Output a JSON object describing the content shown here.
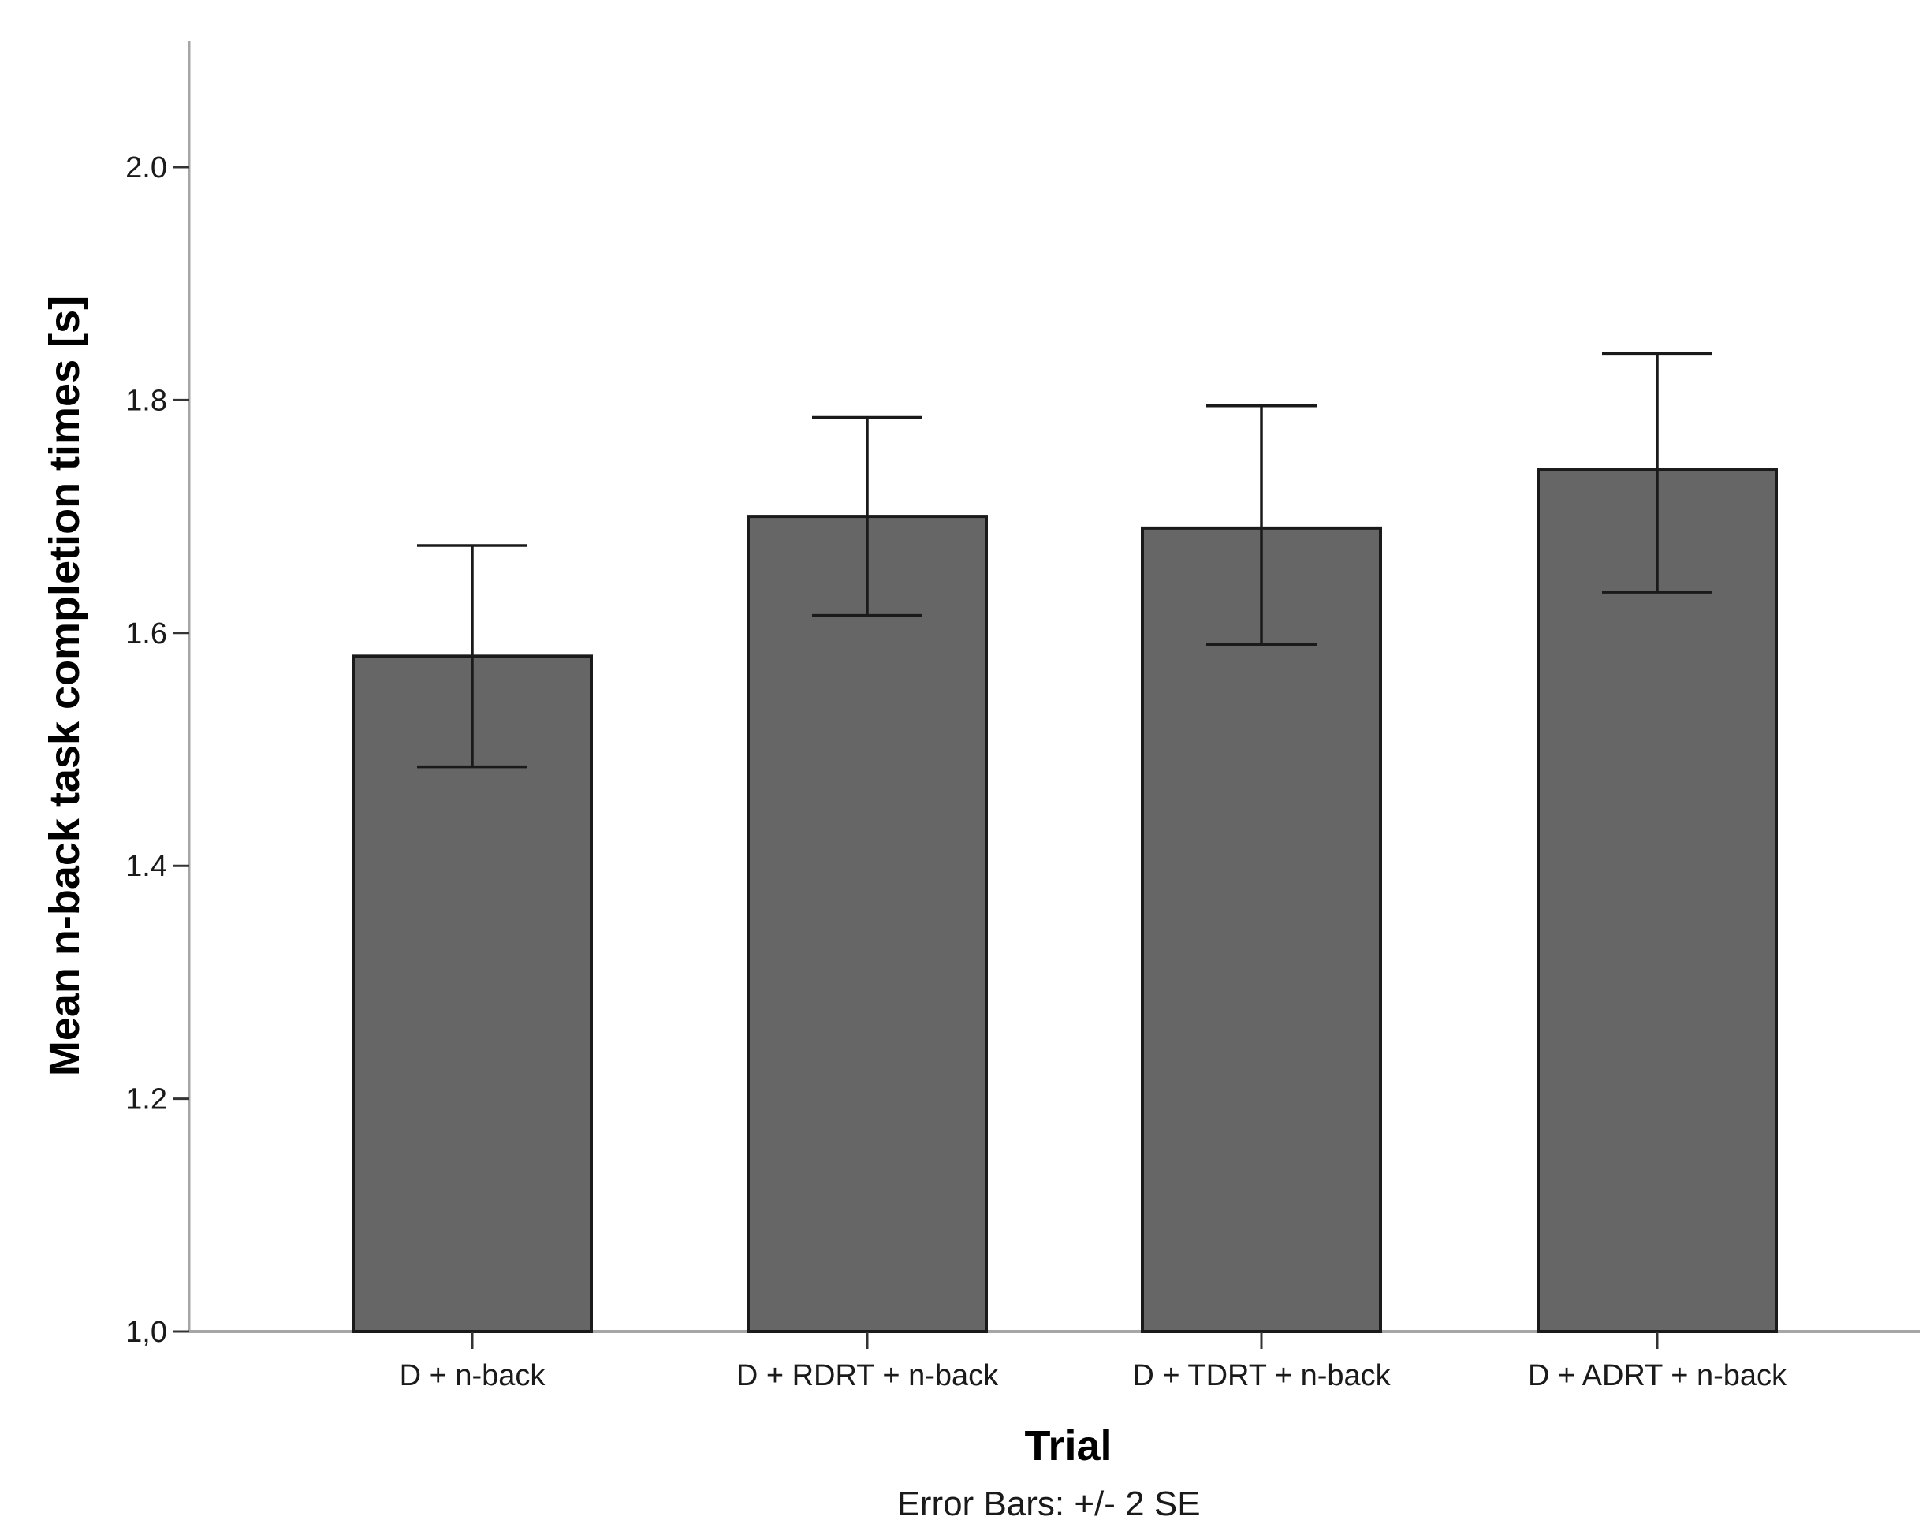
{
  "chart_data": {
    "type": "bar",
    "categories": [
      "D + n-back",
      "D + RDRT + n-back",
      "D + TDRT + n-back",
      "D + ADRT + n-back"
    ],
    "values": [
      1.58,
      1.7,
      1.69,
      1.74
    ],
    "error_bars": {
      "label": "Error Bars: +/- 2 SE",
      "lower": [
        1.485,
        1.615,
        1.59,
        1.635
      ],
      "upper": [
        1.675,
        1.785,
        1.795,
        1.84
      ]
    },
    "xlabel": "Trial",
    "ylabel": "Mean n-back task completion times [s]",
    "ylim": [
      1.0,
      2.1
    ],
    "yticks": [
      1.0,
      1.2,
      1.4,
      1.6,
      1.8,
      2.0
    ],
    "ytick_labels": [
      "1,0",
      "1.2",
      "1.4",
      "1.6",
      "1.8",
      "2.0"
    ],
    "grid": false,
    "colors": {
      "bar": "#666666",
      "bar_edge": "#1a1a1a",
      "axis": "#a6a6a6",
      "error_bar": "#1a1a1a"
    }
  }
}
